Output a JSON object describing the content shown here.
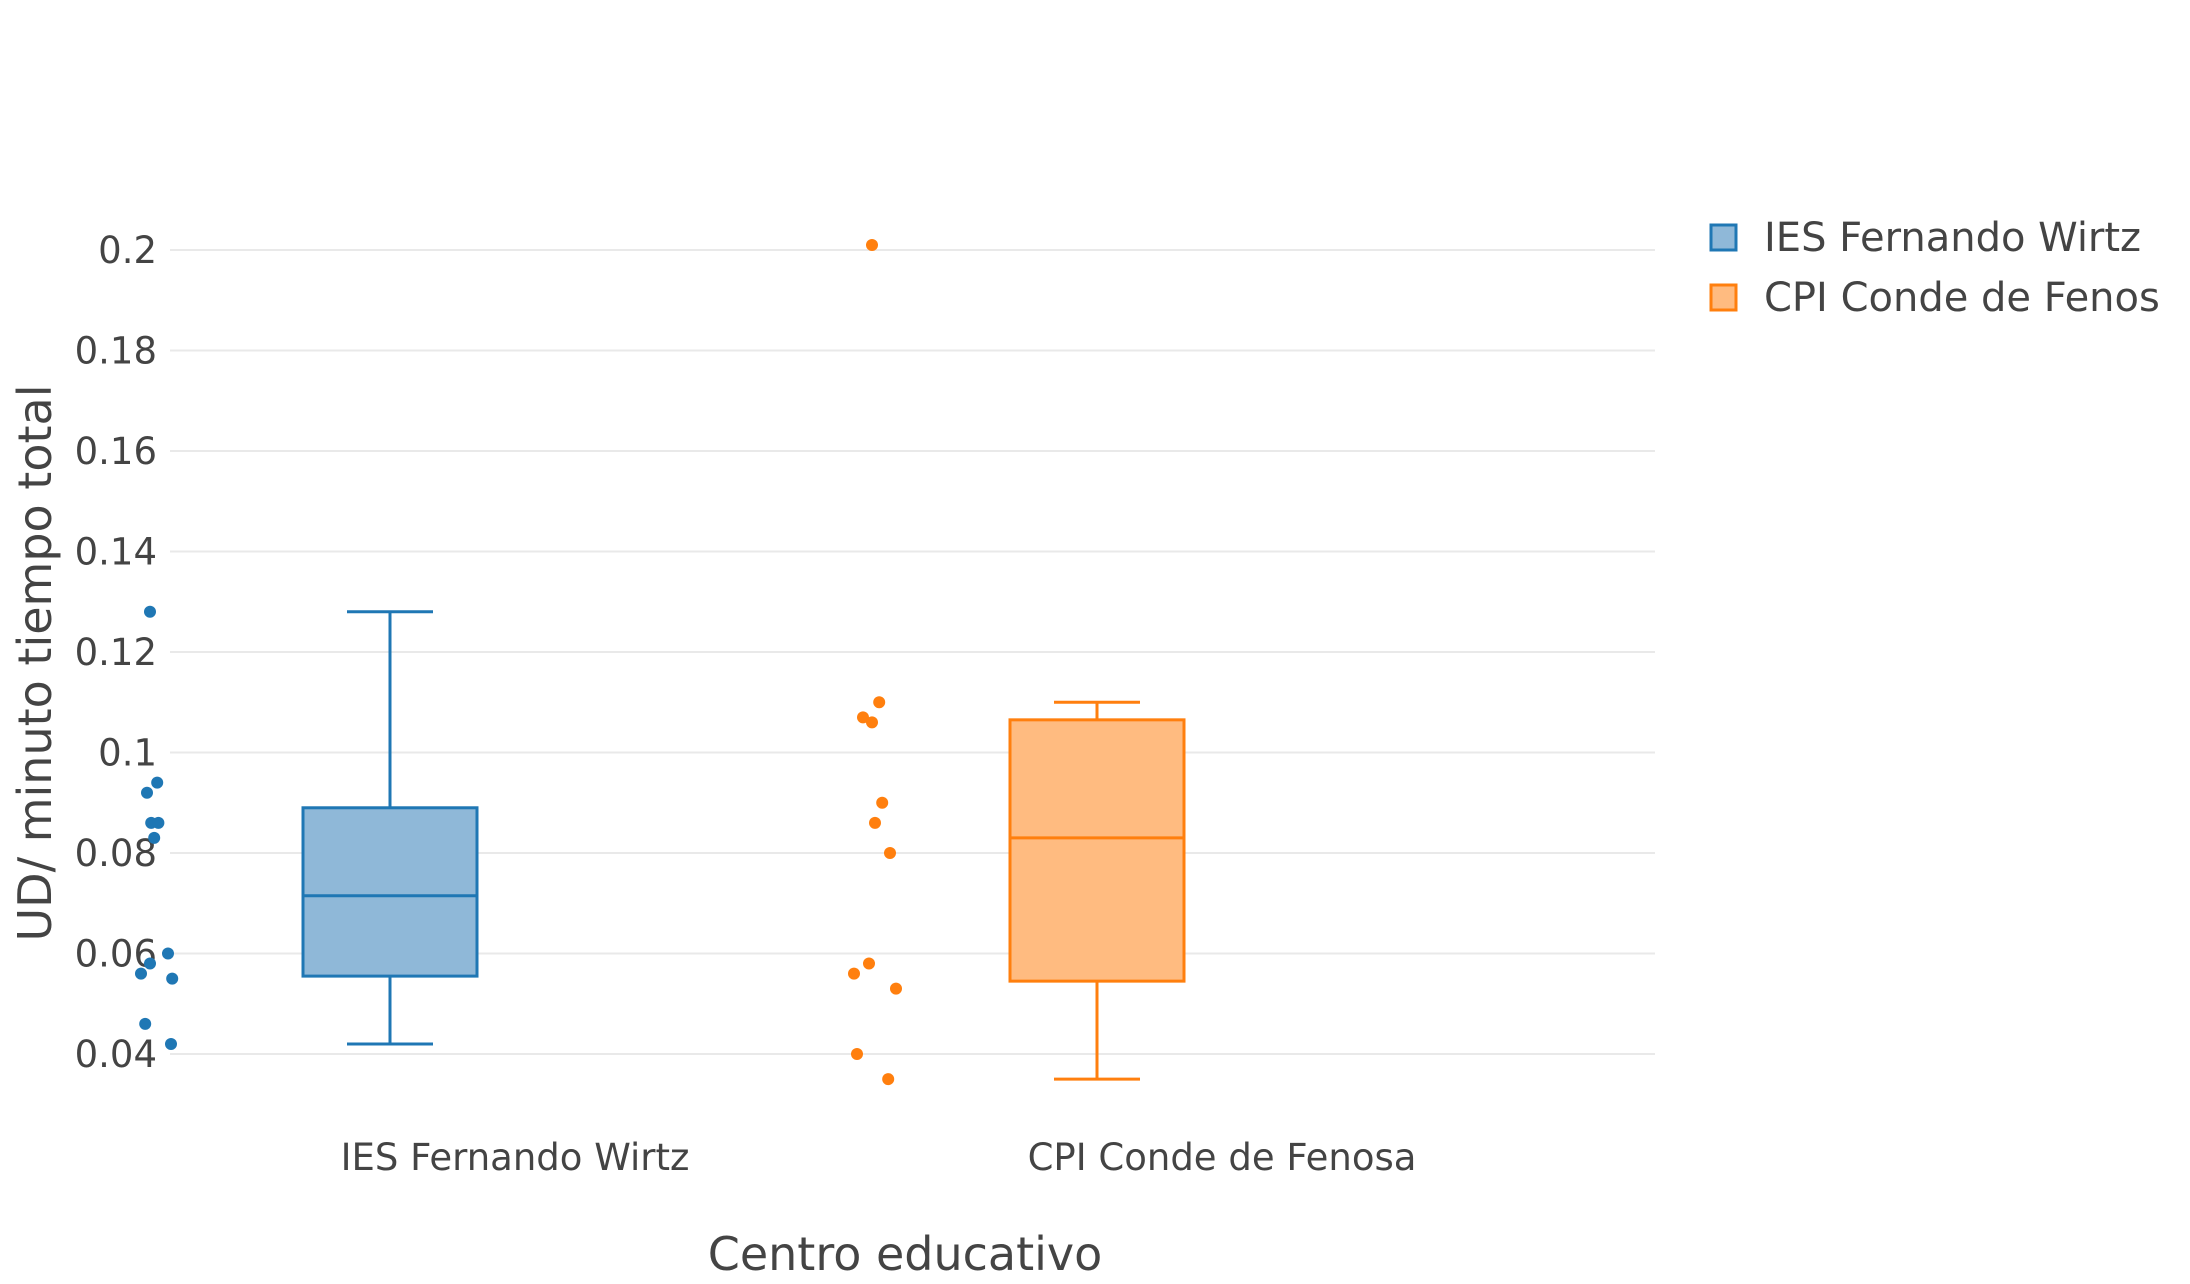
{
  "chart_data": {
    "type": "box",
    "title": "",
    "xlabel": "Centro educativo",
    "ylabel": "UD/ minuto tiempo total",
    "ylim": [
      0.03,
      0.21
    ],
    "yticks": [
      0.04,
      0.06,
      0.08,
      0.1,
      0.12,
      0.14,
      0.16,
      0.18,
      0.2
    ],
    "ytick_labels": [
      "0.04",
      "0.06",
      "0.08",
      "0.1",
      "0.12",
      "0.14",
      "0.16",
      "0.18",
      "0.2"
    ],
    "grid": true,
    "legend_position": "top-right",
    "categories": [
      "IES Fernando Wirtz",
      "CPI Conde de Fenosa"
    ],
    "series": [
      {
        "name": "IES Fernando Wirtz",
        "legend_label": "IES Fernando Wirtz",
        "color": "#1f77b4",
        "fill": "#8fb8d8",
        "box": {
          "min": 0.042,
          "q1": 0.0555,
          "median": 0.0715,
          "q3": 0.089,
          "max": 0.128
        },
        "points": [
          0.128,
          0.094,
          0.092,
          0.086,
          0.086,
          0.083,
          0.06,
          0.058,
          0.056,
          0.055,
          0.046,
          0.042
        ],
        "jitter": [
          0.0,
          0.12,
          -0.05,
          0.02,
          0.14,
          0.07,
          0.3,
          0.0,
          -0.15,
          0.37,
          -0.08,
          0.35
        ]
      },
      {
        "name": "CPI Conde de Fenosa",
        "legend_label": "CPI Conde de Fenos",
        "color": "#ff7f0e",
        "fill": "#ffbb80",
        "box": {
          "min": 0.035,
          "q1": 0.0545,
          "median": 0.083,
          "q3": 0.1065,
          "max": 0.11
        },
        "points": [
          0.201,
          0.11,
          0.107,
          0.106,
          0.09,
          0.086,
          0.08,
          0.058,
          0.056,
          0.053,
          0.04,
          0.035
        ],
        "jitter": [
          0.25,
          0.37,
          0.1,
          0.25,
          0.42,
          0.3,
          0.55,
          0.2,
          -0.05,
          0.65,
          0.0,
          0.52
        ]
      }
    ]
  }
}
